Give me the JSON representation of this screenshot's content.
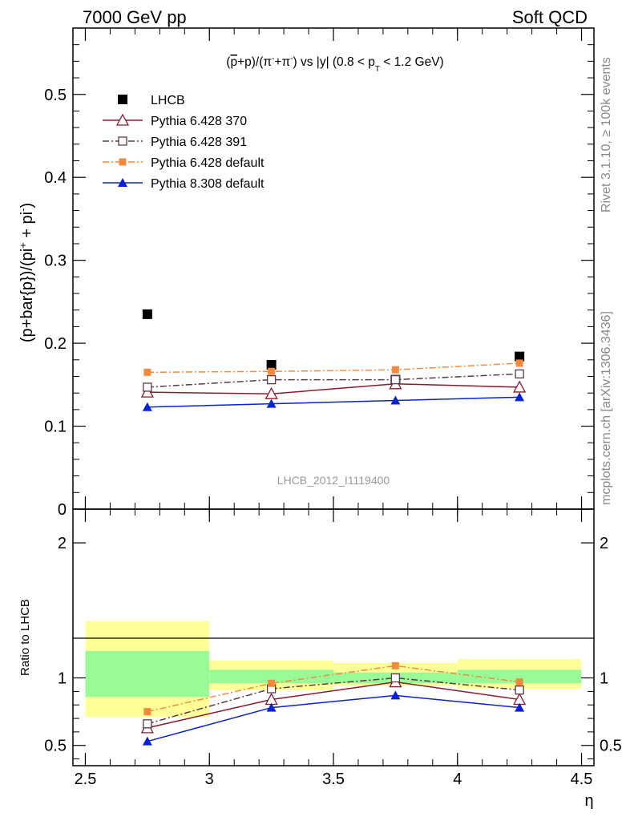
{
  "header": {
    "left": "7000 GeV pp",
    "right": "Soft QCD"
  },
  "side": {
    "rivet": "Rivet 3.1.10, ≥ 100k events",
    "mcplots": "mcplots.cern.ch [arXiv:1306.3436]"
  },
  "chart_data": [
    {
      "type": "line",
      "title_parts": {
        "pre": "(",
        "p_bar": "p",
        "mid": "+p)/(π",
        "sup1": "-",
        "mid2": "+π",
        "sup2": "-",
        "mid3": ") vs |y| (0.8 < p",
        "sub": "T",
        "post": " < 1.2 GeV)"
      },
      "analysis_label": "LHCB_2012_I1119400",
      "ylabel_parts": {
        "pre": "(p+bar{p})/(pi",
        "sup1": "+",
        "mid": " + pi",
        "sup2": "-",
        "post": ")"
      },
      "x": [
        2.75,
        3.25,
        3.75,
        4.25
      ],
      "xlim": [
        2.45,
        4.55
      ],
      "ylim": [
        0,
        0.58
      ],
      "yticks": [
        0,
        0.1,
        0.2,
        0.3,
        0.4,
        0.5
      ],
      "ytick_labels": [
        "0",
        "0.1",
        "0.2",
        "0.3",
        "0.4",
        "0.5"
      ],
      "series": [
        {
          "name": "LHCB",
          "values": [
            0.235,
            0.174,
            0.156,
            0.184
          ],
          "color": "#000000",
          "marker": "square-filled",
          "line": "none"
        },
        {
          "name": "Pythia 6.428 370",
          "values": [
            0.141,
            0.139,
            0.151,
            0.147
          ],
          "color": "#8b1a2b",
          "marker": "triangle-open",
          "line": "solid"
        },
        {
          "name": "Pythia 6.428 391",
          "values": [
            0.147,
            0.156,
            0.156,
            0.163
          ],
          "color": "#5c3a48",
          "marker": "square-open",
          "line": "dashdot"
        },
        {
          "name": "Pythia 6.428 default",
          "values": [
            0.165,
            0.166,
            0.168,
            0.176
          ],
          "color": "#f58a3c",
          "marker": "square-small-filled",
          "line": "dashdot"
        },
        {
          "name": "Pythia 8.308 default",
          "values": [
            0.123,
            0.127,
            0.131,
            0.135
          ],
          "color": "#0a22d6",
          "marker": "triangle-filled",
          "line": "solid"
        }
      ],
      "legend_position": "top-left"
    },
    {
      "type": "line",
      "ylabel": "Ratio to LHCB",
      "xlabel": "η",
      "x": [
        2.75,
        3.25,
        3.75,
        4.25
      ],
      "xlim": [
        2.45,
        4.55
      ],
      "ylim": [
        0.35,
        2.25
      ],
      "yticks": [
        0.5,
        1,
        2
      ],
      "ytick_labels": [
        "0.5",
        "1",
        "2"
      ],
      "xticks": [
        2.5,
        3,
        3.5,
        4,
        4.5
      ],
      "xtick_labels": [
        "2.5",
        "3",
        "3.5",
        "4",
        "4.5"
      ],
      "bands": [
        {
          "x0": 2.5,
          "x1": 3.0,
          "stat": [
            0.86,
            1.2
          ],
          "total": [
            0.71,
            1.42
          ]
        },
        {
          "x0": 3.0,
          "x1": 3.5,
          "stat": [
            0.96,
            1.06
          ],
          "total": [
            0.91,
            1.13
          ]
        },
        {
          "x0": 3.5,
          "x1": 4.0,
          "stat": [
            0.96,
            1.04
          ],
          "total": [
            0.94,
            1.11
          ]
        },
        {
          "x0": 4.0,
          "x1": 4.5,
          "stat": [
            0.96,
            1.06
          ],
          "total": [
            0.92,
            1.14
          ]
        }
      ],
      "band_colors": {
        "stat": "#98fb98",
        "total": "#ffff98"
      },
      "series": [
        {
          "name": "Pythia 6.428 370",
          "values": [
            0.63,
            0.84,
            0.97,
            0.84
          ]
        },
        {
          "name": "Pythia 6.428 391",
          "values": [
            0.66,
            0.92,
            1.0,
            0.91
          ]
        },
        {
          "name": "Pythia 6.428 default",
          "values": [
            0.75,
            0.96,
            1.09,
            0.97
          ]
        },
        {
          "name": "Pythia 8.308 default",
          "values": [
            0.53,
            0.78,
            0.87,
            0.78
          ]
        }
      ]
    }
  ]
}
